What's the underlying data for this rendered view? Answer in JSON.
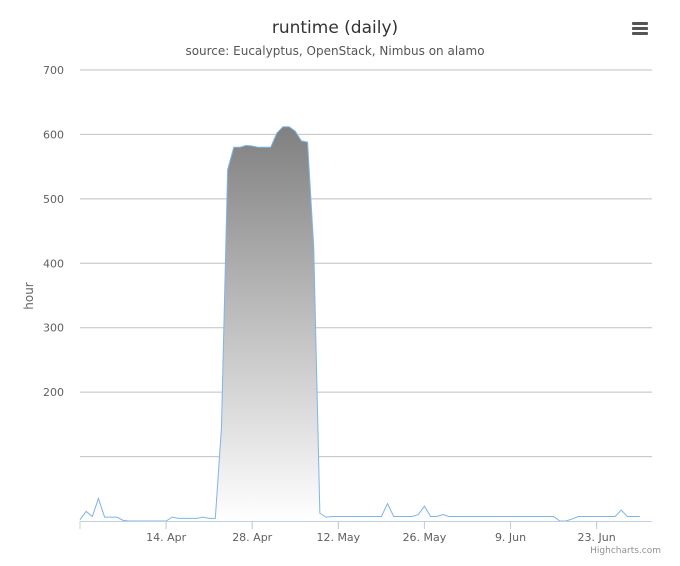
{
  "chart_data": {
    "type": "area",
    "title": "runtime (daily)",
    "subtitle": "source: Eucalyptus, OpenStack, Nimbus on alamo",
    "ylabel": "hour",
    "xlabel": "",
    "ylim": [
      0,
      700
    ],
    "yticks": [
      200,
      300,
      400,
      500,
      600,
      700
    ],
    "xticks": [
      "14. Apr",
      "28. Apr",
      "12. May",
      "26. May",
      "9. Jun",
      "23. Jun"
    ],
    "x_start": "2014-03-31",
    "x_end": "2014-07-02",
    "grid": true,
    "legend": "none",
    "colors": {
      "line": "#7cb5ec",
      "fill_top": "#808080",
      "fill_bottom": "#ffffff",
      "grid": "#c0c0c0",
      "axis": "#c0d0e0"
    },
    "series": [
      {
        "x": [
          "2014-03-31",
          "2014-04-01",
          "2014-04-02",
          "2014-04-03",
          "2014-04-04",
          "2014-04-05",
          "2014-04-06",
          "2014-04-07",
          "2014-04-08",
          "2014-04-09",
          "2014-04-10",
          "2014-04-11",
          "2014-04-12",
          "2014-04-13",
          "2014-04-14",
          "2014-04-15",
          "2014-04-16",
          "2014-04-17",
          "2014-04-18",
          "2014-04-19",
          "2014-04-20",
          "2014-04-21",
          "2014-04-22",
          "2014-04-23",
          "2014-04-24",
          "2014-04-25",
          "2014-04-26",
          "2014-04-27",
          "2014-04-28",
          "2014-04-29",
          "2014-04-30",
          "2014-05-01",
          "2014-05-02",
          "2014-05-03",
          "2014-05-04",
          "2014-05-05",
          "2014-05-06",
          "2014-05-07",
          "2014-05-08",
          "2014-05-09",
          "2014-05-10",
          "2014-05-11",
          "2014-05-12",
          "2014-05-13",
          "2014-05-14",
          "2014-05-15",
          "2014-05-16",
          "2014-05-17",
          "2014-05-18",
          "2014-05-19",
          "2014-05-20",
          "2014-05-21",
          "2014-05-22",
          "2014-05-23",
          "2014-05-24",
          "2014-05-25",
          "2014-05-26",
          "2014-05-27",
          "2014-05-28",
          "2014-05-29",
          "2014-05-30",
          "2014-05-31",
          "2014-06-01",
          "2014-06-02",
          "2014-06-03",
          "2014-06-04",
          "2014-06-05",
          "2014-06-06",
          "2014-06-07",
          "2014-06-08",
          "2014-06-09",
          "2014-06-10",
          "2014-06-11",
          "2014-06-12",
          "2014-06-13",
          "2014-06-14",
          "2014-06-15",
          "2014-06-16",
          "2014-06-17",
          "2014-06-18",
          "2014-06-19",
          "2014-06-20",
          "2014-06-21",
          "2014-06-22",
          "2014-06-23",
          "2014-06-24",
          "2014-06-25",
          "2014-06-26",
          "2014-06-27",
          "2014-06-28",
          "2014-06-29",
          "2014-06-30"
        ],
        "values": [
          2,
          15,
          7,
          35,
          6,
          6,
          6,
          1,
          0,
          0,
          0,
          0,
          0,
          0,
          0,
          6,
          4,
          4,
          4,
          4,
          6,
          4,
          4,
          145,
          545,
          580,
          580,
          583,
          582,
          580,
          580,
          580,
          602,
          612,
          612,
          605,
          590,
          588,
          425,
          12,
          6,
          7,
          7,
          7,
          7,
          7,
          7,
          7,
          7,
          7,
          27,
          7,
          7,
          7,
          7,
          10,
          23,
          7,
          7,
          10,
          7,
          7,
          7,
          7,
          7,
          7,
          7,
          7,
          7,
          7,
          7,
          7,
          7,
          7,
          7,
          7,
          7,
          7,
          0,
          0,
          3,
          7,
          7,
          7,
          7,
          7,
          7,
          7,
          17,
          7,
          7,
          7
        ]
      }
    ]
  },
  "credit": "Highcharts.com",
  "menu": {
    "icon": "menu-icon"
  }
}
